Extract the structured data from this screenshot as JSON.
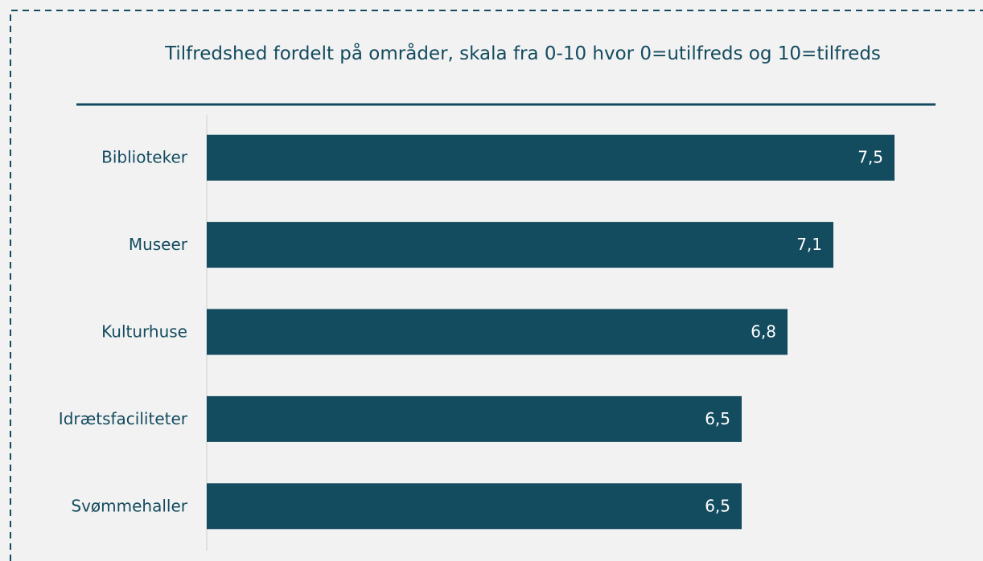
{
  "chart_data": {
    "type": "barh",
    "title": "Tilfredshed fordelt på områder, skala fra 0-10 hvor 0=utilfreds og 10=tilfreds",
    "categories": [
      "Biblioteker",
      "Museer",
      "Kulturhuse",
      "Idrætsfaciliteter",
      "Svømmehaller"
    ],
    "values": [
      7.5,
      7.1,
      6.8,
      6.5,
      6.5
    ],
    "value_labels": [
      "7,5",
      "7,1",
      "6,8",
      "6,5",
      "6,5"
    ],
    "color": "#134b5f",
    "xlim": [
      3,
      8
    ]
  }
}
